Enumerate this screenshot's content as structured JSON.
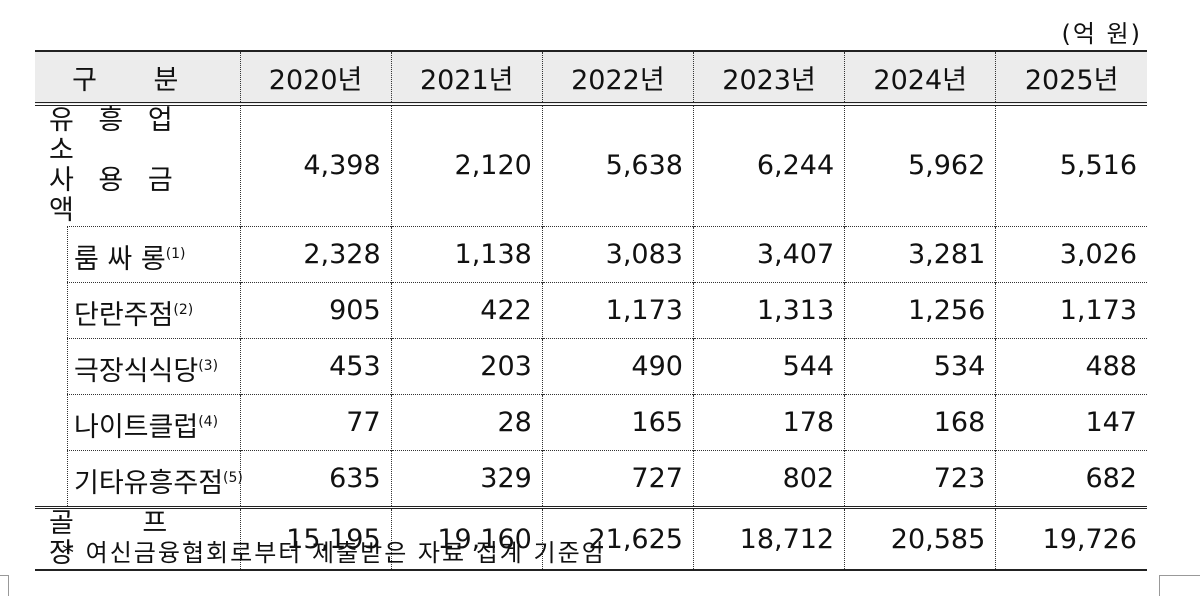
{
  "unit": "(억 원)",
  "table": {
    "header": [
      "구 분",
      "2020년",
      "2021년",
      "2022년",
      "2023년",
      "2024년",
      "2025년"
    ],
    "total_row": {
      "label_lines": [
        "유 흥 업 소",
        "사 용 금 액"
      ],
      "values": [
        "4,398",
        "2,120",
        "5,638",
        "6,244",
        "5,962",
        "5,516"
      ]
    },
    "sub_rows": [
      {
        "label": "룸 싸 롱",
        "note": "(1)",
        "values": [
          "2,328",
          "1,138",
          "3,083",
          "3,407",
          "3,281",
          "3,026"
        ]
      },
      {
        "label": "단란주점",
        "note": "(2)",
        "values": [
          "905",
          "422",
          "1,173",
          "1,313",
          "1,256",
          "1,173"
        ]
      },
      {
        "label": "극장식식당",
        "note": "(3)",
        "values": [
          "453",
          "203",
          "490",
          "544",
          "534",
          "488"
        ]
      },
      {
        "label": "나이트클럽",
        "note": "(4)",
        "values": [
          "77",
          "28",
          "165",
          "178",
          "168",
          "147"
        ]
      },
      {
        "label": "기타유흥주점",
        "note": "(5)",
        "values": [
          "635",
          "329",
          "727",
          "802",
          "723",
          "682"
        ]
      }
    ],
    "golf_row": {
      "label": "골 프 장",
      "values": [
        "15,195",
        "19,160",
        "21,625",
        "18,712",
        "20,585",
        "19,726"
      ]
    }
  },
  "footnote": "* 여신금융협회로부터 제출받은 자료 집계 기준임"
}
